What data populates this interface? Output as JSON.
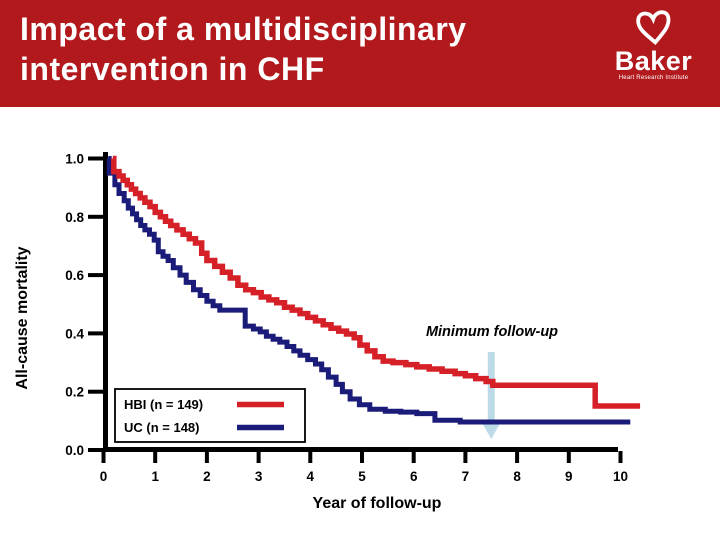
{
  "header": {
    "title_line1": "Impact of a multidisciplinary",
    "title_line2": "intervention in CHF",
    "bg_color": "#B2191D",
    "logo": {
      "brand": "Baker",
      "tagline": "Heart Research Institute",
      "heart_icon": "heart-outline-icon",
      "color": "#FFFFFF"
    }
  },
  "chart_data": {
    "type": "line",
    "subtype": "kaplan-meier-step",
    "title": "",
    "xlabel": "Year of follow-up",
    "ylabel": "All-cause mortality",
    "xlim": [
      0,
      10
    ],
    "ylim": [
      0.0,
      1.0
    ],
    "grid": false,
    "x_ticks": [
      "0",
      "1",
      "2",
      "3",
      "4",
      "5",
      "6",
      "7",
      "8",
      "9",
      "10"
    ],
    "y_ticks": [
      "0.0",
      "0.2",
      "0.4",
      "0.6",
      "0.8",
      "1.0"
    ],
    "axis_color": "#000000",
    "annotation": {
      "text": "Minimum follow-up",
      "x_year": 7.5,
      "arrow_color": "#BCDAE8"
    },
    "legend": {
      "position": "lower-left",
      "items": [
        {
          "label": "HBI (n = 149)",
          "color": "#D62027"
        },
        {
          "label": "UC (n = 148)",
          "color": "#1B1B7A"
        }
      ]
    },
    "series": [
      {
        "name": "HBI",
        "color": "#D62027",
        "end": 10.38,
        "points": [
          [
            0.18,
            1.0
          ],
          [
            0.2,
            0.955
          ],
          [
            0.3,
            0.94
          ],
          [
            0.38,
            0.925
          ],
          [
            0.46,
            0.91
          ],
          [
            0.54,
            0.895
          ],
          [
            0.62,
            0.88
          ],
          [
            0.71,
            0.865
          ],
          [
            0.8,
            0.85
          ],
          [
            0.9,
            0.835
          ],
          [
            1.0,
            0.815
          ],
          [
            1.1,
            0.8
          ],
          [
            1.2,
            0.785
          ],
          [
            1.3,
            0.77
          ],
          [
            1.42,
            0.755
          ],
          [
            1.54,
            0.74
          ],
          [
            1.66,
            0.725
          ],
          [
            1.78,
            0.71
          ],
          [
            1.9,
            0.675
          ],
          [
            2.0,
            0.65
          ],
          [
            2.15,
            0.63
          ],
          [
            2.3,
            0.61
          ],
          [
            2.45,
            0.59
          ],
          [
            2.6,
            0.565
          ],
          [
            2.75,
            0.55
          ],
          [
            2.9,
            0.54
          ],
          [
            3.05,
            0.525
          ],
          [
            3.2,
            0.515
          ],
          [
            3.35,
            0.505
          ],
          [
            3.5,
            0.49
          ],
          [
            3.65,
            0.48
          ],
          [
            3.8,
            0.468
          ],
          [
            3.95,
            0.455
          ],
          [
            4.1,
            0.443
          ],
          [
            4.25,
            0.43
          ],
          [
            4.4,
            0.418
          ],
          [
            4.55,
            0.408
          ],
          [
            4.7,
            0.398
          ],
          [
            4.85,
            0.385
          ],
          [
            4.96,
            0.36
          ],
          [
            5.1,
            0.34
          ],
          [
            5.25,
            0.32
          ],
          [
            5.41,
            0.305
          ],
          [
            5.6,
            0.3
          ],
          [
            5.85,
            0.293
          ],
          [
            6.06,
            0.285
          ],
          [
            6.3,
            0.278
          ],
          [
            6.55,
            0.27
          ],
          [
            6.8,
            0.262
          ],
          [
            7.0,
            0.255
          ],
          [
            7.2,
            0.245
          ],
          [
            7.4,
            0.235
          ],
          [
            7.53,
            0.222
          ],
          [
            9.51,
            0.151
          ]
        ]
      },
      {
        "name": "UC",
        "color": "#1B1B7A",
        "end": 10.19,
        "points": [
          [
            0.09,
            1.0
          ],
          [
            0.11,
            0.95
          ],
          [
            0.22,
            0.91
          ],
          [
            0.3,
            0.88
          ],
          [
            0.4,
            0.855
          ],
          [
            0.48,
            0.83
          ],
          [
            0.56,
            0.81
          ],
          [
            0.64,
            0.79
          ],
          [
            0.72,
            0.77
          ],
          [
            0.8,
            0.755
          ],
          [
            0.89,
            0.74
          ],
          [
            0.98,
            0.72
          ],
          [
            1.06,
            0.68
          ],
          [
            1.15,
            0.665
          ],
          [
            1.25,
            0.65
          ],
          [
            1.35,
            0.625
          ],
          [
            1.48,
            0.6
          ],
          [
            1.6,
            0.575
          ],
          [
            1.74,
            0.55
          ],
          [
            1.87,
            0.53
          ],
          [
            2.0,
            0.51
          ],
          [
            2.12,
            0.495
          ],
          [
            2.25,
            0.48
          ],
          [
            2.74,
            0.425
          ],
          [
            2.9,
            0.415
          ],
          [
            3.03,
            0.405
          ],
          [
            3.15,
            0.39
          ],
          [
            3.28,
            0.38
          ],
          [
            3.41,
            0.37
          ],
          [
            3.55,
            0.355
          ],
          [
            3.68,
            0.34
          ],
          [
            3.8,
            0.325
          ],
          [
            3.95,
            0.31
          ],
          [
            4.1,
            0.295
          ],
          [
            4.22,
            0.275
          ],
          [
            4.35,
            0.25
          ],
          [
            4.5,
            0.225
          ],
          [
            4.62,
            0.2
          ],
          [
            4.77,
            0.175
          ],
          [
            4.95,
            0.155
          ],
          [
            5.15,
            0.14
          ],
          [
            5.45,
            0.133
          ],
          [
            5.75,
            0.13
          ],
          [
            6.06,
            0.125
          ],
          [
            6.41,
            0.102
          ],
          [
            6.9,
            0.096
          ]
        ]
      }
    ]
  }
}
